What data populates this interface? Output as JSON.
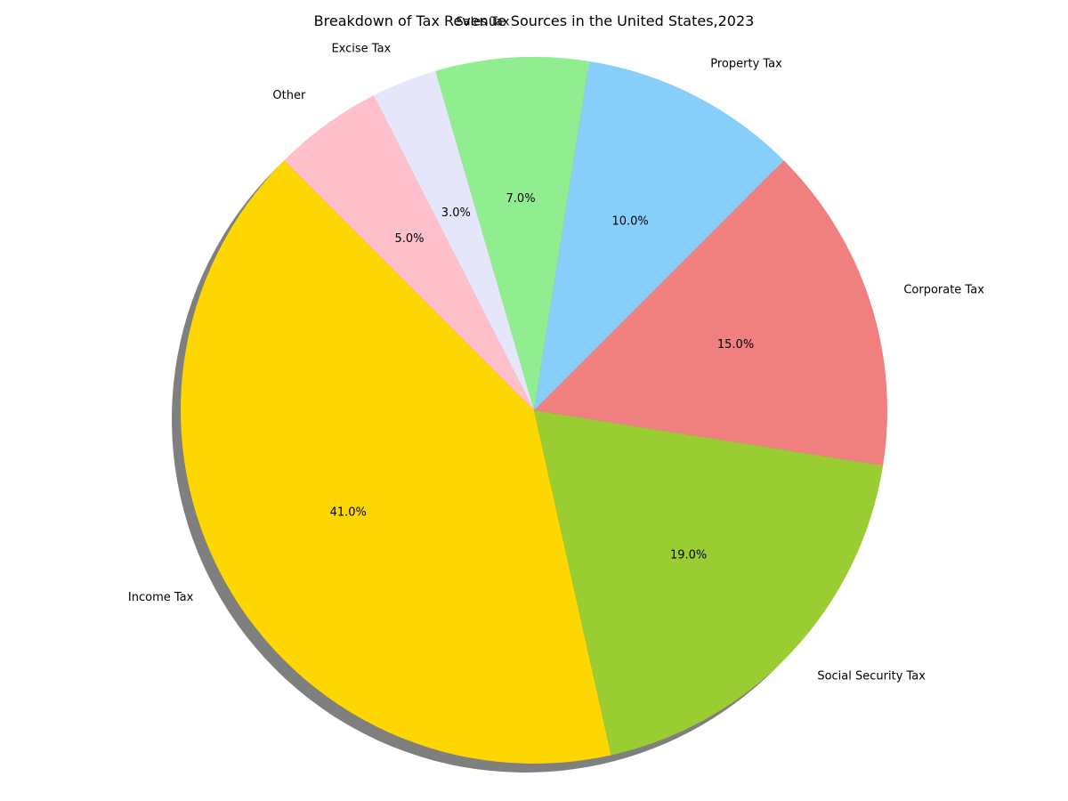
{
  "chart_data": {
    "type": "pie",
    "title": "Breakdown of Tax Revenue Sources in the United States,2023",
    "categories": [
      "Income Tax",
      "Social Security Tax",
      "Corporate Tax",
      "Property Tax",
      "Sales Tax",
      "Excise Tax",
      "Other"
    ],
    "values": [
      41.0,
      19.0,
      15.0,
      10.0,
      7.0,
      3.0,
      5.0
    ],
    "value_labels": [
      "41.0%",
      "19.0%",
      "15.0%",
      "10.0%",
      "7.0%",
      "3.0%",
      "5.0%"
    ],
    "colors": [
      "#FFD700",
      "#9ACD32",
      "#F08080",
      "#87CEFA",
      "#90EE90",
      "#E6E6FA",
      "#FFC0CB"
    ],
    "start_angle_deg": 135,
    "direction": "counterclockwise",
    "shadow": true,
    "legend": false
  }
}
